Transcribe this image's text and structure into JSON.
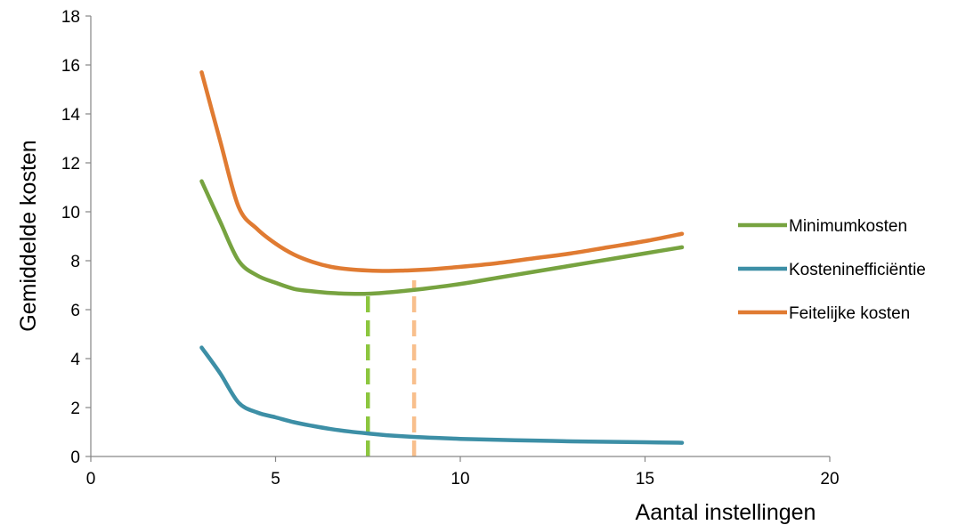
{
  "chart_data": {
    "type": "line",
    "title": "",
    "xlabel": "Aantal instellingen",
    "ylabel": "Gemiddelde kosten",
    "xlim": [
      0,
      20
    ],
    "ylim": [
      0,
      18
    ],
    "xticks": [
      "0",
      "5",
      "10",
      "15",
      "20"
    ],
    "yticks": [
      "0",
      "2",
      "4",
      "6",
      "8",
      "10",
      "12",
      "14",
      "16",
      "18"
    ],
    "grid": false,
    "legend_position": "right",
    "series": [
      {
        "name": "Minimumkosten",
        "color": "#77a340",
        "x": [
          3,
          3.5,
          4,
          4.5,
          5,
          5.5,
          6,
          6.5,
          7,
          7.5,
          8,
          8.5,
          9,
          10,
          11,
          12,
          13,
          14,
          15,
          16
        ],
        "y": [
          11.25,
          9.6,
          8.0,
          7.4,
          7.1,
          6.85,
          6.75,
          6.68,
          6.65,
          6.65,
          6.7,
          6.77,
          6.85,
          7.05,
          7.3,
          7.55,
          7.8,
          8.05,
          8.3,
          8.55
        ]
      },
      {
        "name": "Kosteninefficiëntie",
        "color": "#3d8fa6",
        "x": [
          3,
          3.5,
          4,
          4.5,
          5,
          5.5,
          6,
          6.5,
          7,
          7.5,
          8,
          9,
          10,
          11,
          12,
          13,
          14,
          15,
          16
        ],
        "y": [
          4.45,
          3.4,
          2.2,
          1.8,
          1.6,
          1.4,
          1.25,
          1.12,
          1.02,
          0.94,
          0.87,
          0.78,
          0.72,
          0.68,
          0.65,
          0.62,
          0.6,
          0.58,
          0.56
        ]
      },
      {
        "name": "Feitelijke kosten",
        "color": "#e07b32",
        "x": [
          3,
          3.5,
          4,
          4.5,
          5,
          5.5,
          6,
          6.5,
          7,
          7.5,
          8,
          8.5,
          9,
          10,
          11,
          12,
          13,
          14,
          15,
          16
        ],
        "y": [
          15.7,
          12.9,
          10.2,
          9.3,
          8.7,
          8.25,
          7.95,
          7.75,
          7.65,
          7.6,
          7.58,
          7.6,
          7.63,
          7.75,
          7.9,
          8.1,
          8.3,
          8.55,
          8.8,
          9.1
        ]
      }
    ],
    "reference_lines": [
      {
        "x": 7.5,
        "y_from": 0,
        "y_to": 6.65,
        "color": "#8cc63f",
        "style": "dashed"
      },
      {
        "x": 8.75,
        "y_from": 0,
        "y_to": 7.2,
        "color": "#f8bf8c",
        "style": "dashed"
      }
    ]
  }
}
